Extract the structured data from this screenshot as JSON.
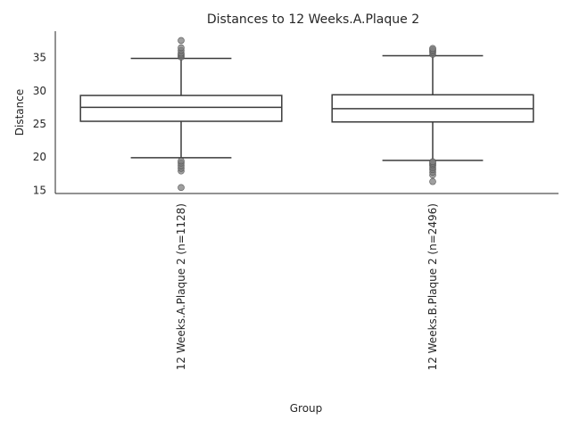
{
  "chart_data": {
    "type": "box",
    "title": "Distances to 12 Weeks.A.Plaque 2",
    "xlabel": "Group",
    "ylabel": "Distance",
    "ylim": [
      14.5,
      39
    ],
    "yticks": [
      15,
      20,
      25,
      30,
      35
    ],
    "grid": false,
    "categories": [
      "12 Weeks.A.Plaque 2 (n=1128)",
      "12 Weeks.B.Plaque 2 (n=2496)"
    ],
    "boxes": [
      {
        "name": "12 Weeks.A.Plaque 2 (n=1128)",
        "whisker_low": 19.9,
        "q1": 25.4,
        "median": 27.5,
        "q3": 29.3,
        "whisker_high": 34.9,
        "outliers": [
          15.4,
          17.9,
          18.3,
          18.7,
          19.1,
          19.4,
          35.1,
          35.3,
          35.5,
          35.7,
          36.1,
          36.5,
          37.6
        ]
      },
      {
        "name": "12 Weeks.B.Plaque 2 (n=2496)",
        "whisker_low": 19.5,
        "q1": 25.3,
        "median": 27.3,
        "q3": 29.4,
        "whisker_high": 35.3,
        "outliers": [
          16.3,
          17.3,
          17.7,
          18.1,
          18.4,
          18.7,
          18.9,
          19.1,
          19.3,
          35.5,
          35.8,
          36.0,
          36.2,
          36.4
        ]
      }
    ]
  }
}
